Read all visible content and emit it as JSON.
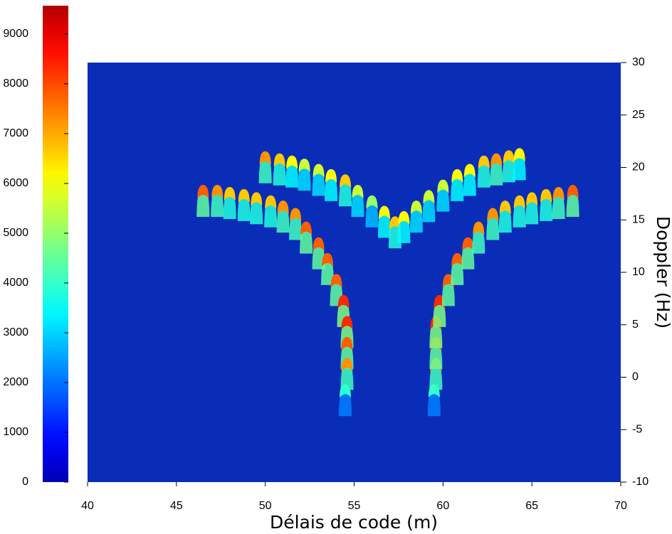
{
  "chart_data": {
    "type": "surface",
    "view": "top",
    "colormap": "jet",
    "xlabel": "Délais de code (m)",
    "ylabel": "Doppler (Hz)",
    "yaxis_side": "right",
    "x": [
      50,
      50.8,
      51.5,
      52.2,
      53,
      53.7,
      54.5,
      55.2,
      56,
      56.7,
      57.3,
      57.8,
      58.5,
      59.2,
      60,
      60.8,
      61.5,
      62.3,
      63,
      63.7,
      64.3,
      46.5,
      47.3,
      48,
      48.8,
      49.5,
      50.3,
      51,
      51.7,
      52.3,
      53,
      53.5,
      54,
      54.4,
      54.6,
      54.6,
      54.6,
      54.5,
      59.5,
      59.6,
      59.6,
      59.6,
      59.8,
      60.3,
      60.8,
      61.4,
      62,
      62.8,
      63.5,
      64.3,
      65,
      65.8,
      66.5,
      67.3
    ],
    "y": [
      21.2,
      21,
      20.8,
      20.5,
      20,
      19.5,
      19,
      18,
      17,
      16,
      15,
      15.5,
      16.5,
      17.5,
      18.5,
      19.5,
      20,
      20.8,
      21,
      21.3,
      21.5,
      18,
      18,
      17.8,
      17.6,
      17.3,
      17,
      16.5,
      15.8,
      14.5,
      13,
      11.5,
      9.5,
      7.5,
      5.5,
      3.5,
      1.5,
      -1,
      -1,
      1.5,
      3.5,
      5.5,
      7.5,
      9.5,
      11.5,
      13,
      14.5,
      15.8,
      16.5,
      17,
      17.3,
      17.6,
      17.8,
      18
    ],
    "values": [
      7000,
      6500,
      6000,
      5500,
      5500,
      6000,
      6500,
      5500,
      5000,
      6000,
      6500,
      6000,
      5500,
      5500,
      5500,
      6000,
      6000,
      6500,
      7000,
      6500,
      6000,
      7500,
      7000,
      6500,
      6500,
      6500,
      6500,
      7000,
      7000,
      7500,
      7500,
      7500,
      7500,
      8000,
      8000,
      7500,
      7000,
      4000,
      4000,
      7000,
      7500,
      8000,
      8000,
      7500,
      7500,
      7500,
      7000,
      7000,
      6500,
      6500,
      6500,
      6500,
      7000,
      7500
    ],
    "xlim": [
      40,
      70
    ],
    "xticks": [
      40,
      45,
      50,
      55,
      60,
      65,
      70
    ],
    "ylim": [
      -10,
      30
    ],
    "yticks": [
      -10,
      -5,
      0,
      5,
      10,
      15,
      20,
      25,
      30
    ],
    "zlim": [
      0,
      9570
    ],
    "zticks": [
      0,
      1000,
      2000,
      3000,
      4000,
      5000,
      6000,
      7000,
      8000,
      9000
    ]
  }
}
